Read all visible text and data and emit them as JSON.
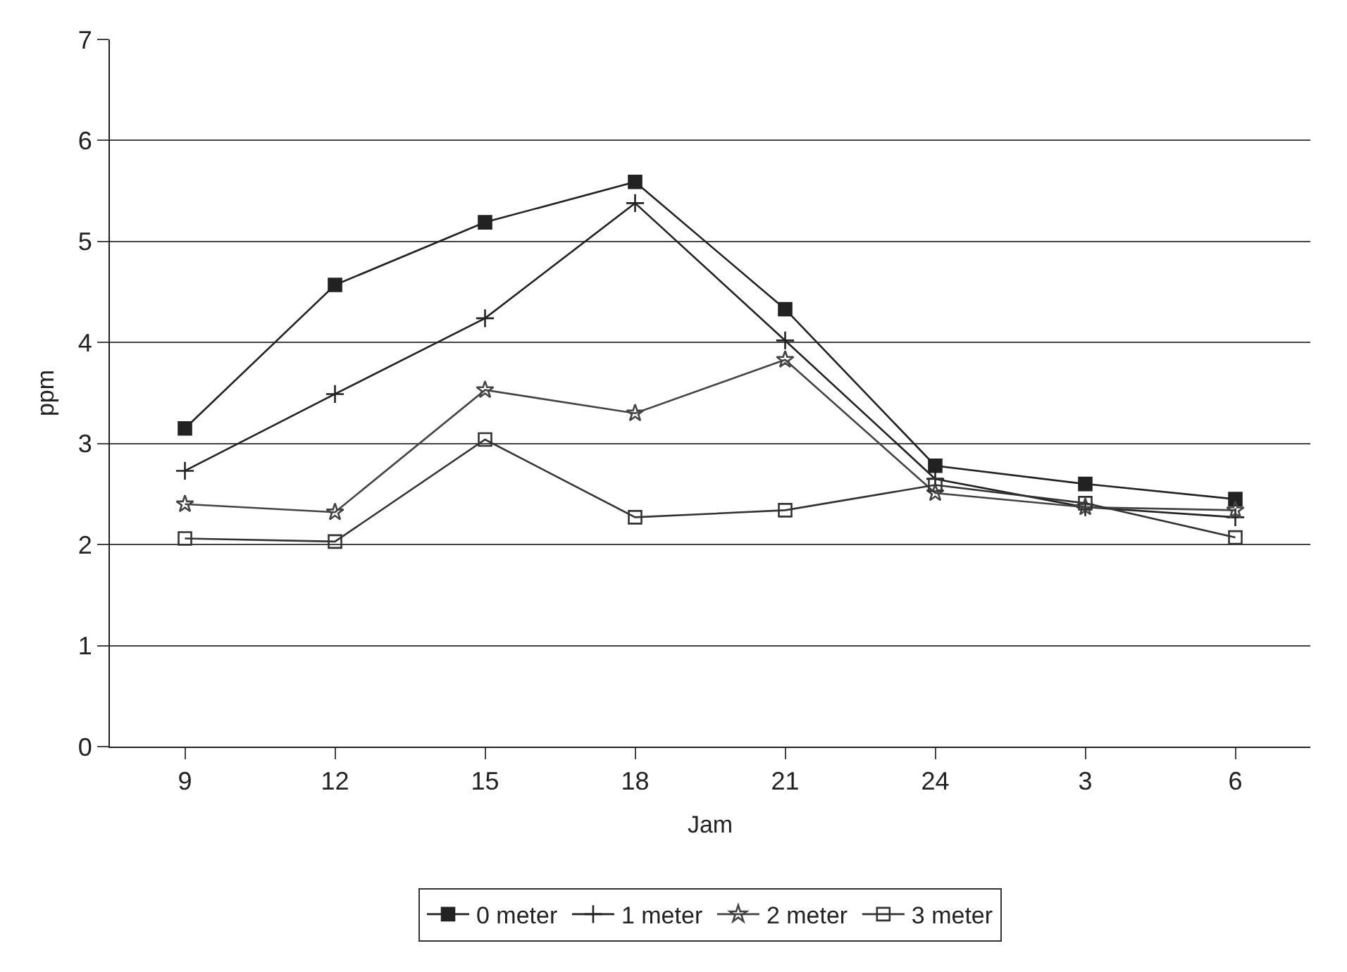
{
  "chart_data": {
    "type": "line",
    "xlabel": "Jam",
    "ylabel": "ppm",
    "categories": [
      "9",
      "12",
      "15",
      "18",
      "21",
      "24",
      "3",
      "6"
    ],
    "series": [
      {
        "name": "0 meter",
        "color": "#222222",
        "marker": "square",
        "values": [
          3.15,
          4.57,
          5.19,
          5.59,
          4.33,
          2.78,
          2.6,
          2.45
        ]
      },
      {
        "name": "1 meter",
        "color": "#222222",
        "marker": "cross",
        "values": [
          2.73,
          3.49,
          4.24,
          5.38,
          4.02,
          2.65,
          2.37,
          2.27
        ]
      },
      {
        "name": "2 meter",
        "color": "#444444",
        "marker": "star",
        "values": [
          2.4,
          2.32,
          3.53,
          3.3,
          3.83,
          2.51,
          2.37,
          2.34
        ]
      },
      {
        "name": "3 meter",
        "color": "#333333",
        "marker": "square",
        "values": [
          2.06,
          2.03,
          3.04,
          2.27,
          2.34,
          2.59,
          2.41,
          2.07
        ]
      }
    ],
    "ylim": [
      0,
      7
    ],
    "yticks": [
      0,
      1,
      2,
      3,
      4,
      5,
      6,
      7
    ],
    "grid": "y",
    "legend": "bottom",
    "line_style": "solid"
  }
}
